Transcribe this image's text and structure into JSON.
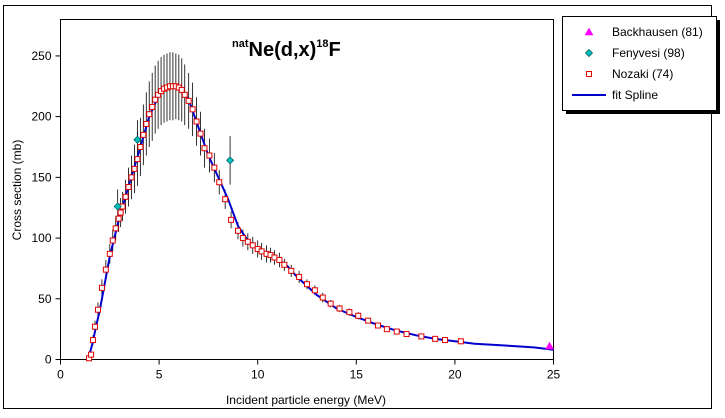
{
  "chart_data": {
    "type": "scatter",
    "title": {
      "pre": "nat",
      "main1": "Ne(d,x)",
      "sup": "18",
      "main2": "F"
    },
    "xlabel": "Incident particle energy (MeV)",
    "ylabel": "Cross section (mb)",
    "xlim": [
      0,
      25
    ],
    "ylim": [
      0,
      280
    ],
    "xticks": [
      0,
      5,
      10,
      15,
      20,
      25
    ],
    "yticks": [
      0,
      50,
      100,
      150,
      200,
      250
    ],
    "legend_position": "right",
    "series": [
      {
        "name": "Backhausen (81)",
        "marker": "triangle",
        "color": "#ff00ff",
        "x": [
          24.8
        ],
        "y": [
          11
        ]
      },
      {
        "name": "Fenyvesi (98)",
        "marker": "diamond",
        "color": "#00c0c0",
        "x": [
          2.9,
          3.9,
          8.6
        ],
        "y": [
          126,
          181,
          164
        ],
        "yerr": [
          14,
          16,
          20
        ]
      },
      {
        "name": "Nozaki (74)",
        "marker": "square",
        "color": "#e00000",
        "x": [
          1.45,
          1.55,
          1.65,
          1.75,
          1.9,
          2.1,
          2.3,
          2.5,
          2.65,
          2.8,
          2.95,
          3.05,
          3.15,
          3.3,
          3.45,
          3.6,
          3.75,
          3.9,
          4.05,
          4.2,
          4.35,
          4.5,
          4.65,
          4.8,
          4.95,
          5.1,
          5.25,
          5.4,
          5.55,
          5.7,
          5.85,
          6.0,
          6.15,
          6.3,
          6.5,
          6.7,
          6.9,
          7.1,
          7.3,
          7.55,
          7.8,
          8.05,
          8.35,
          8.65,
          9.0,
          9.25,
          9.5,
          9.75,
          10.0,
          10.2,
          10.45,
          10.65,
          10.85,
          11.1,
          11.35,
          11.7,
          12.1,
          12.5,
          12.9,
          13.3,
          13.7,
          14.15,
          14.65,
          15.1,
          15.6,
          16.1,
          16.55,
          17.05,
          17.55,
          18.3,
          19.0,
          19.5,
          20.3
        ],
        "y": [
          1,
          4,
          16,
          27,
          41,
          59,
          74,
          87,
          98,
          108,
          116,
          121,
          126,
          134,
          142,
          150,
          157,
          165,
          175,
          185,
          194,
          202,
          208,
          214,
          218,
          221,
          223,
          224,
          225,
          225,
          225,
          224,
          222,
          218,
          213,
          206,
          196,
          186,
          174,
          168,
          158,
          146,
          132,
          115,
          106,
          100,
          97,
          94,
          91,
          89,
          87,
          86,
          84,
          82,
          78,
          73,
          68,
          62,
          57,
          51,
          46,
          42,
          39,
          36,
          32,
          28,
          25,
          23,
          21,
          19,
          17,
          16,
          15
        ],
        "yerr": [
          1,
          2,
          4,
          5,
          6,
          7,
          8,
          8,
          9,
          10,
          11,
          12,
          12,
          14,
          16,
          18,
          20,
          22,
          24,
          25,
          26,
          27,
          28,
          28,
          28,
          28,
          28,
          28,
          28,
          28,
          27,
          27,
          26,
          25,
          23,
          22,
          20,
          18,
          16,
          14,
          12,
          10,
          8,
          7,
          7,
          7,
          7,
          7,
          7,
          7,
          7,
          6,
          6,
          6,
          5,
          5,
          5,
          4,
          4,
          4,
          3,
          3,
          3,
          3,
          2,
          2,
          2,
          2,
          2,
          2,
          2,
          1,
          1
        ]
      },
      {
        "name": "fit Spline",
        "marker": "line",
        "color": "#0000cc",
        "x": [
          1.4,
          1.6,
          1.8,
          2.0,
          2.5,
          3.0,
          3.5,
          4.0,
          4.5,
          5.0,
          5.5,
          6.0,
          6.5,
          7.0,
          7.5,
          8.0,
          8.5,
          9.0,
          9.5,
          10.0,
          10.5,
          11.0,
          11.5,
          12.0,
          13.0,
          14.0,
          15.0,
          16.0,
          17.0,
          18.0,
          19.0,
          20.0,
          21.0,
          22.0,
          23.0,
          24.0,
          25.0
        ],
        "y": [
          0,
          12,
          27,
          41,
          85,
          118,
          145,
          172,
          200,
          218,
          225,
          225,
          214,
          191,
          168,
          150,
          132,
          110,
          98,
          91,
          87,
          83,
          77,
          68,
          53,
          42,
          35,
          29,
          24,
          20,
          17,
          15,
          13,
          12,
          11,
          10,
          8
        ]
      }
    ]
  }
}
